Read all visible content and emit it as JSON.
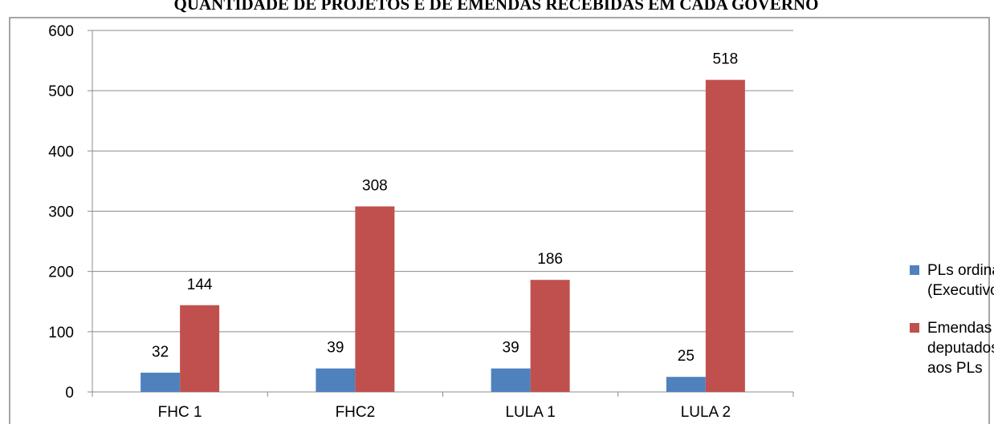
{
  "chart_data": {
    "type": "bar",
    "title": "QUANTIDADE DE PROJETOS E DE EMENDAS RECEBIDAS EM CADA GOVERNO",
    "categories": [
      "FHC 1",
      "FHC2",
      "LULA 1",
      "LULA 2"
    ],
    "series": [
      {
        "name": "PLs ordinária (Executivo)",
        "color": "#4f81bd",
        "values": [
          32,
          39,
          39,
          25
        ]
      },
      {
        "name": "Emendas deputados aos PLs",
        "color": "#c0504d",
        "values": [
          144,
          308,
          186,
          518
        ]
      }
    ],
    "ylim": [
      0,
      600
    ],
    "yticks": [
      0,
      100,
      200,
      300,
      400,
      500,
      600
    ],
    "grid": true,
    "legend": "right"
  }
}
